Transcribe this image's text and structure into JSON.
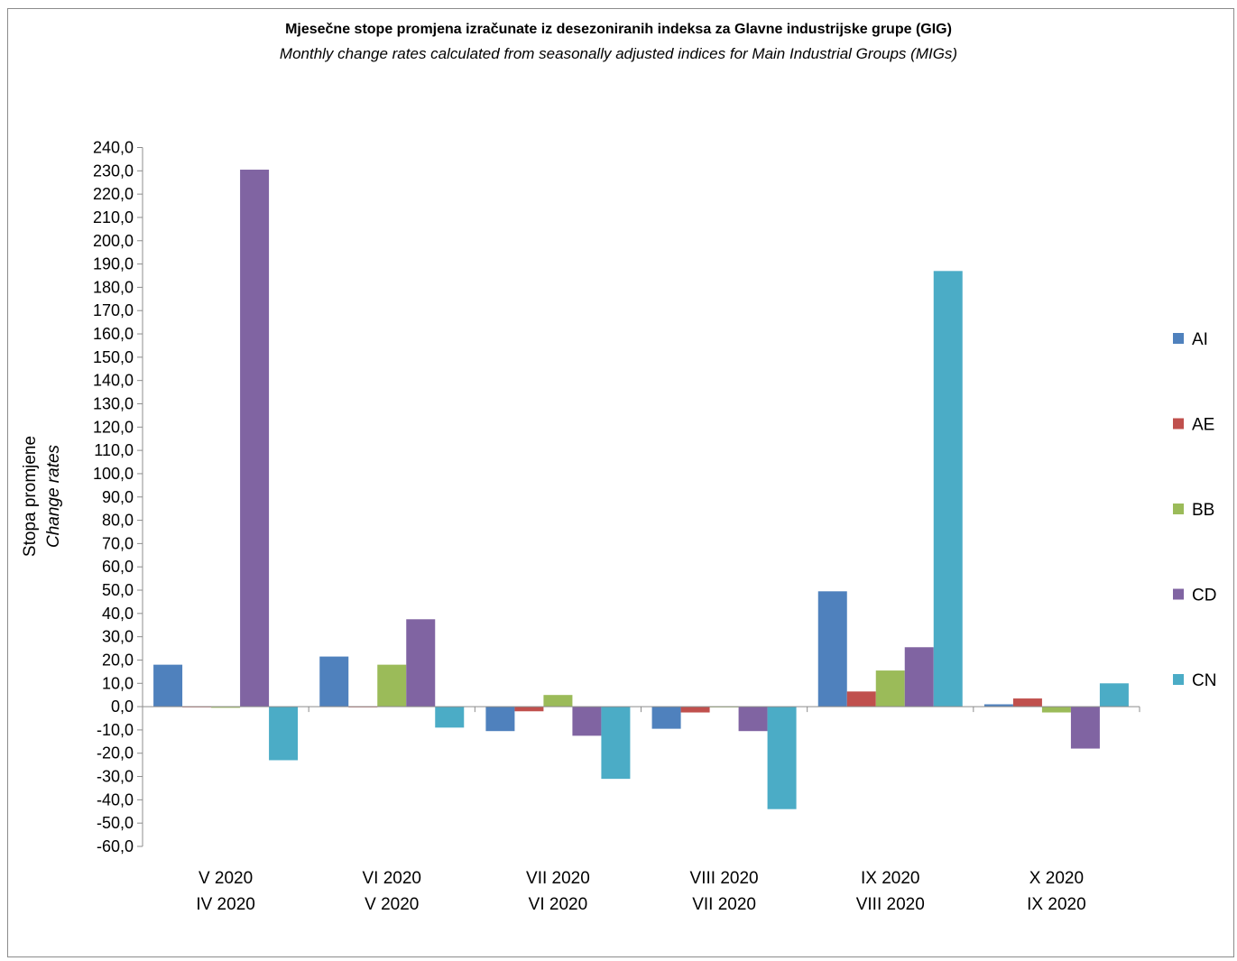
{
  "chart_data": {
    "type": "bar",
    "title": "Mjesečne stope promjena izračunate iz desezoniranih indeksa za Glavne industrijske grupe (GIG)",
    "subtitle": "Monthly change rates calculated from seasonally adjusted indices for Main Industrial Groups (MIGs)",
    "ylabel": "Stopa promjene",
    "ylabel_en": "Change rates",
    "ylim": [
      -60,
      240
    ],
    "ytick_step": 10,
    "grid": false,
    "legend_position": "right",
    "categories": [
      [
        "V 2020",
        "IV 2020"
      ],
      [
        "VI 2020",
        "V 2020"
      ],
      [
        "VII 2020",
        "VI 2020"
      ],
      [
        "VIII 2020",
        "VII 2020"
      ],
      [
        "IX 2020",
        "VIII 2020"
      ],
      [
        "X 2020",
        "IX 2020"
      ]
    ],
    "series": [
      {
        "name": "AI",
        "color": "#4F81BD",
        "values": [
          18.0,
          21.5,
          -10.5,
          -9.5,
          49.5,
          1.0
        ]
      },
      {
        "name": "AE",
        "color": "#C0504D",
        "values": [
          0.0,
          0.0,
          -2.0,
          -2.5,
          6.5,
          3.5
        ]
      },
      {
        "name": "BB",
        "color": "#9BBB59",
        "values": [
          -0.5,
          18.0,
          5.0,
          0.0,
          15.5,
          -2.5
        ]
      },
      {
        "name": "CD",
        "color": "#8064A2",
        "values": [
          230.5,
          37.5,
          -12.5,
          -10.5,
          25.5,
          -18.0
        ]
      },
      {
        "name": "CN",
        "color": "#4BACC6",
        "values": [
          -23.0,
          -9.0,
          -31.0,
          -44.0,
          187.0,
          10.0
        ]
      }
    ]
  }
}
